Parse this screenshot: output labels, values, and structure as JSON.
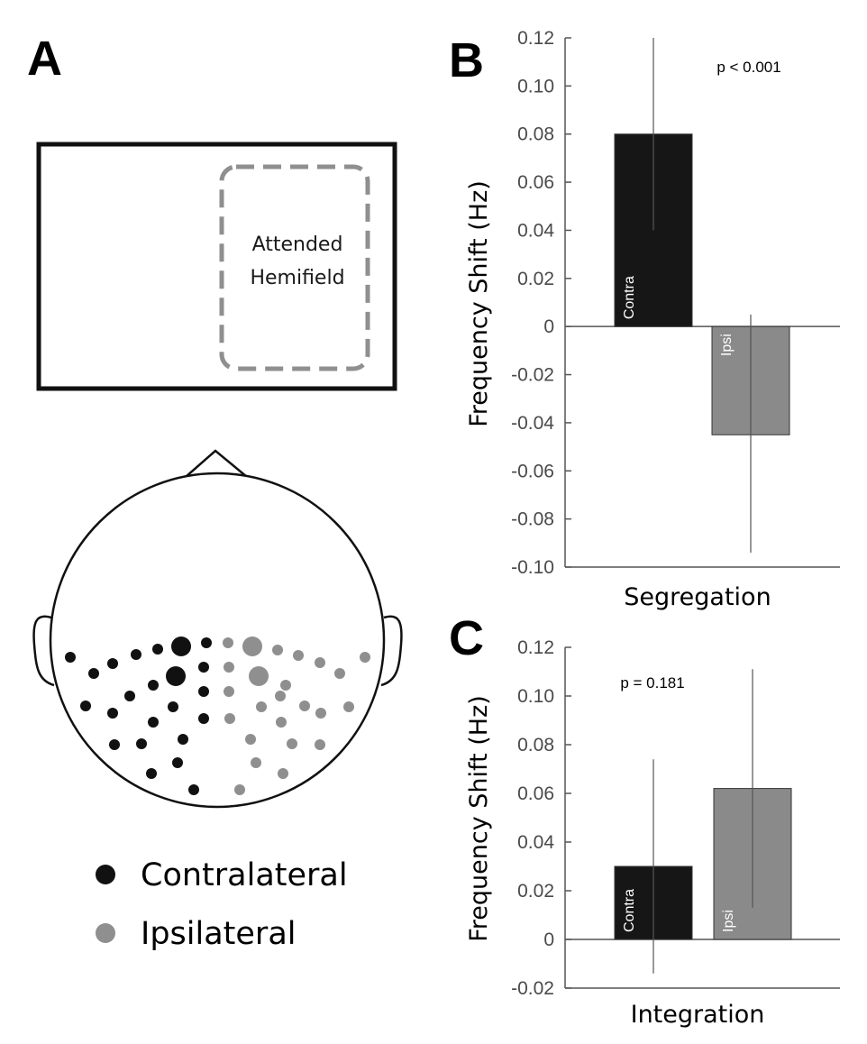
{
  "panel_a": {
    "letter": "A",
    "hemifield_label_line1": "Attended",
    "hemifield_label_line2": "Hemifield",
    "legend": [
      {
        "label": "Contralateral",
        "color": "#111111"
      },
      {
        "label": "Ipsilateral",
        "color": "#8f8f8f"
      }
    ]
  },
  "colors": {
    "contra": "#161616",
    "ipsi": "#8a8a8a",
    "axis": "#555555",
    "dashed": "#8f8f8f"
  },
  "chart_data": [
    {
      "panel": "B",
      "type": "bar",
      "categories": [
        "Contra",
        "Ipsi"
      ],
      "values": [
        0.08,
        -0.045
      ],
      "error_bars": [
        [
          0.04,
          0.12
        ],
        [
          -0.094,
          0.005
        ]
      ],
      "ylabel": "Frequency Shift (Hz)",
      "xlabel": "Segregation",
      "ylim": [
        -0.1,
        0.12
      ],
      "yticks": [
        "0.12",
        "0.10",
        "0.08",
        "0.06",
        "0.04",
        "0.02",
        "0",
        "-0.02",
        "-0.04",
        "-0.06",
        "-0.08",
        "-0.10"
      ],
      "annotation": "p < 0.001",
      "grid": false
    },
    {
      "panel": "C",
      "type": "bar",
      "categories": [
        "Contra",
        "Ipsi"
      ],
      "values": [
        0.03,
        0.062
      ],
      "error_bars": [
        [
          -0.014,
          0.074
        ],
        [
          0.013,
          0.111
        ]
      ],
      "ylabel": "Frequency Shift (Hz)",
      "xlabel": "Integration",
      "ylim": [
        -0.02,
        0.12
      ],
      "yticks": [
        "0.12",
        "0.10",
        "0.08",
        "0.06",
        "0.04",
        "0.02",
        "0",
        "-0.02"
      ],
      "annotation": "p = 0.181",
      "grid": false
    }
  ]
}
